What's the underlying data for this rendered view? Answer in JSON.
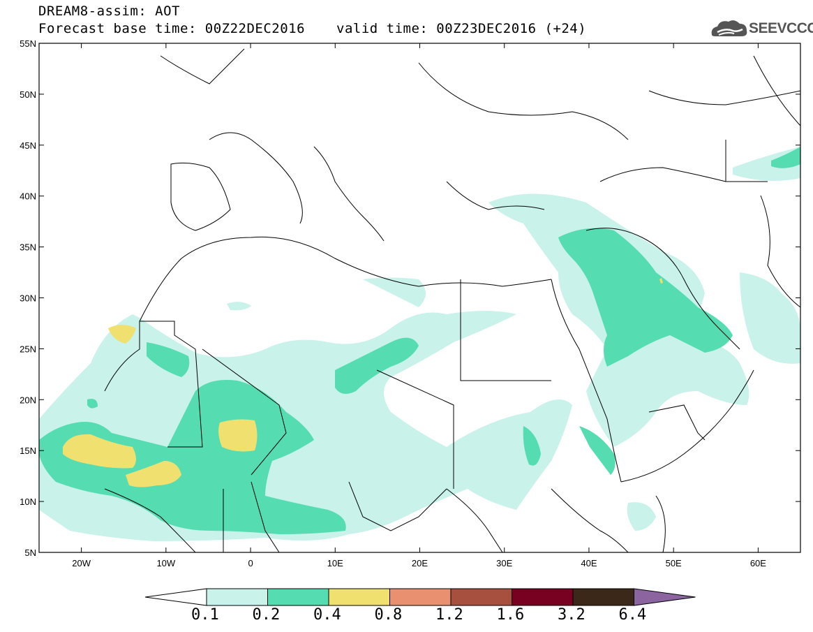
{
  "header": {
    "title": "DREAM8-assim: AOT",
    "base_time": "Forecast base time: 00Z22DEC2016",
    "valid_time": "valid time: 00Z23DEC2016 (+24)",
    "logo_text": "SEEVCCC"
  },
  "map": {
    "lon_range": [
      -25,
      65
    ],
    "lat_range": [
      5,
      55
    ],
    "lat_labels": [
      "55N",
      "50N",
      "45N",
      "40N",
      "35N",
      "30N",
      "25N",
      "20N",
      "15N",
      "10N",
      "5N"
    ],
    "lon_labels": [
      "20W",
      "10W",
      "0",
      "10E",
      "20E",
      "30E",
      "40E",
      "50E",
      "60E"
    ]
  },
  "colorbar": {
    "labels": [
      "0.1",
      "0.2",
      "0.4",
      "0.8",
      "1.2",
      "1.6",
      "3.2",
      "6.4"
    ],
    "colors": [
      "#c8f2ea",
      "#55dcb0",
      "#f0e070",
      "#e89070",
      "#a85040",
      "#780020",
      "#3c2818",
      "#8c64a0"
    ]
  }
}
